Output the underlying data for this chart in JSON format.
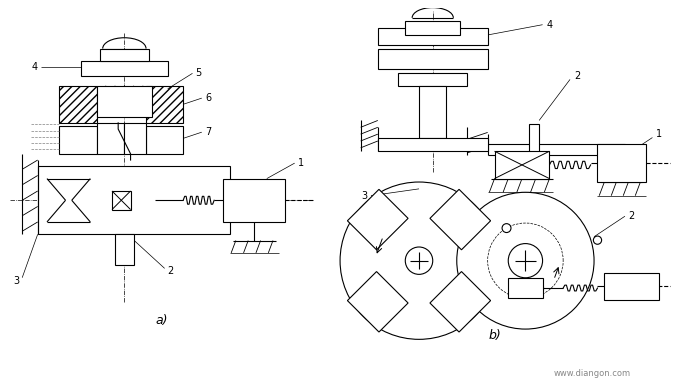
{
  "background_color": "#ffffff",
  "line_color": "#000000",
  "watermark": "www.diangon.com",
  "lw": 0.8,
  "fs": 7
}
